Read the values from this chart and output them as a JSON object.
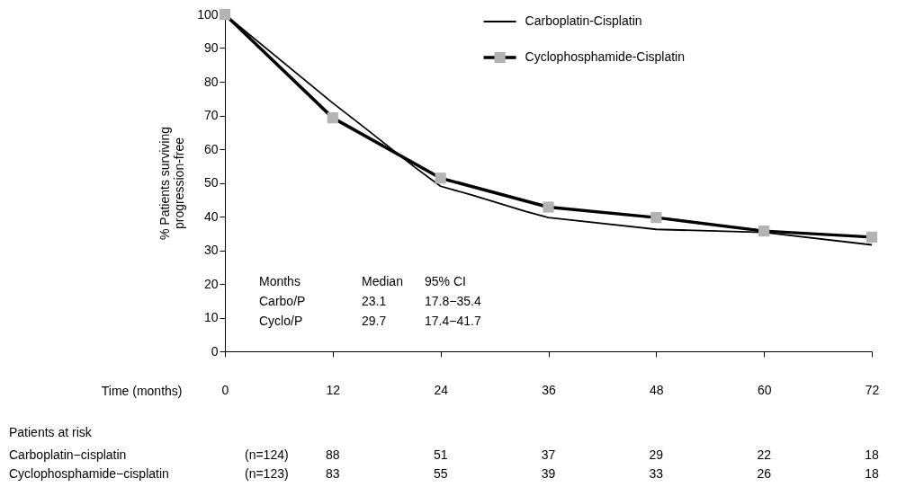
{
  "chart_data": {
    "type": "line",
    "xlabel": "Time (months)",
    "ylabel": "% Patients surviving\nprogression-free",
    "xlim": [
      0,
      72
    ],
    "xticks": [
      0,
      12,
      24,
      36,
      48,
      60,
      72
    ],
    "ylim": [
      0,
      100
    ],
    "yticks": [
      0,
      10,
      20,
      30,
      40,
      50,
      60,
      70,
      80,
      90,
      100
    ],
    "grid": false,
    "legend": "top right",
    "line_style": "solid",
    "series": [
      {
        "name": "Carboplatin-Cisplatin",
        "color": "#000000",
        "marker": "none",
        "x": [
          0,
          12,
          15.2,
          21.1,
          24,
          27.6,
          33.5,
          36,
          48,
          60,
          72
        ],
        "values": [
          100,
          73.7,
          67.1,
          54.7,
          49,
          46.3,
          41.5,
          39.7,
          36.2,
          35.3,
          31.6
        ]
      },
      {
        "name": "Cyclophosphamide-Cisplatin",
        "color": "#000000",
        "marker": "square",
        "x": [
          0,
          12,
          24,
          36,
          48,
          60,
          72
        ],
        "values": [
          100,
          69.3,
          51.4,
          42.8,
          39.7,
          35.7,
          33.9
        ]
      }
    ],
    "annotations": [
      "Months",
      "Median",
      "95% CI",
      "Carbo/P",
      "23.1",
      "17.8−35.4",
      "Cyclo/P",
      "29.7",
      "17.4−41.7",
      "Patients at risk",
      "Carboplatin−cisplatin",
      "(n=124)",
      "88",
      "51",
      "37",
      "29",
      "22",
      "18",
      "Cyclophosphamide−cisplatin",
      "(n=123)",
      "83",
      "55",
      "39",
      "33",
      "26",
      "18"
    ]
  }
}
